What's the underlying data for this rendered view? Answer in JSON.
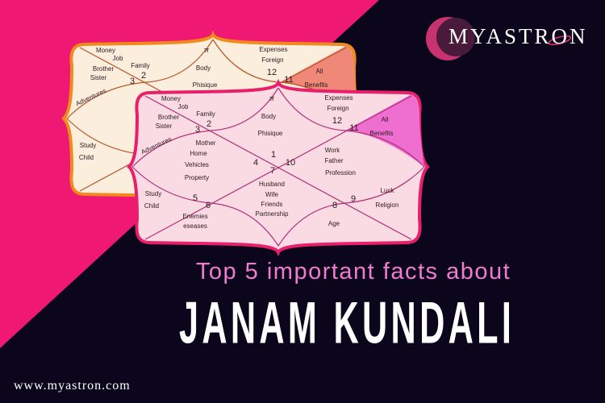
{
  "colors": {
    "background": "#0c061c",
    "accent_triangle": "#ef1873",
    "subtitle": "#f07ccf",
    "title": "#ffffff",
    "front_chart_fill": "#fadbe3",
    "front_chart_border": "#e8206a",
    "front_chart_highlight": "#ee6fcf",
    "back_chart_fill": "#fbeedd",
    "back_chart_border": "#f08a1a",
    "back_chart_highlight": "#f08878"
  },
  "logo": {
    "text": "MYASTRON",
    "icon": "crescent-moon-icon"
  },
  "kundali_chart": {
    "labels": [
      "Money",
      "Job",
      "Family",
      "Brother",
      "Sister",
      "3",
      "2",
      "ल",
      "Body",
      "Phisique",
      "Expenses",
      "Foreign",
      "12",
      "11",
      "All",
      "Benefits",
      "Adventures",
      "Mother",
      "Home",
      "Vehicles",
      "Property",
      "1",
      "4",
      "10",
      "7",
      "Work",
      "Father",
      "Profession",
      "Husband",
      "Wife",
      "Friends",
      "Partnership",
      "Study",
      "Child",
      "5",
      "6",
      "Enemies",
      "eseases",
      "8",
      "9",
      "Luck",
      "Religion",
      "Age"
    ]
  },
  "headline": {
    "subtitle": "Top 5 important facts about",
    "title": "JANAM KUNDALI"
  },
  "footer": {
    "url": "www.myastron.com"
  }
}
